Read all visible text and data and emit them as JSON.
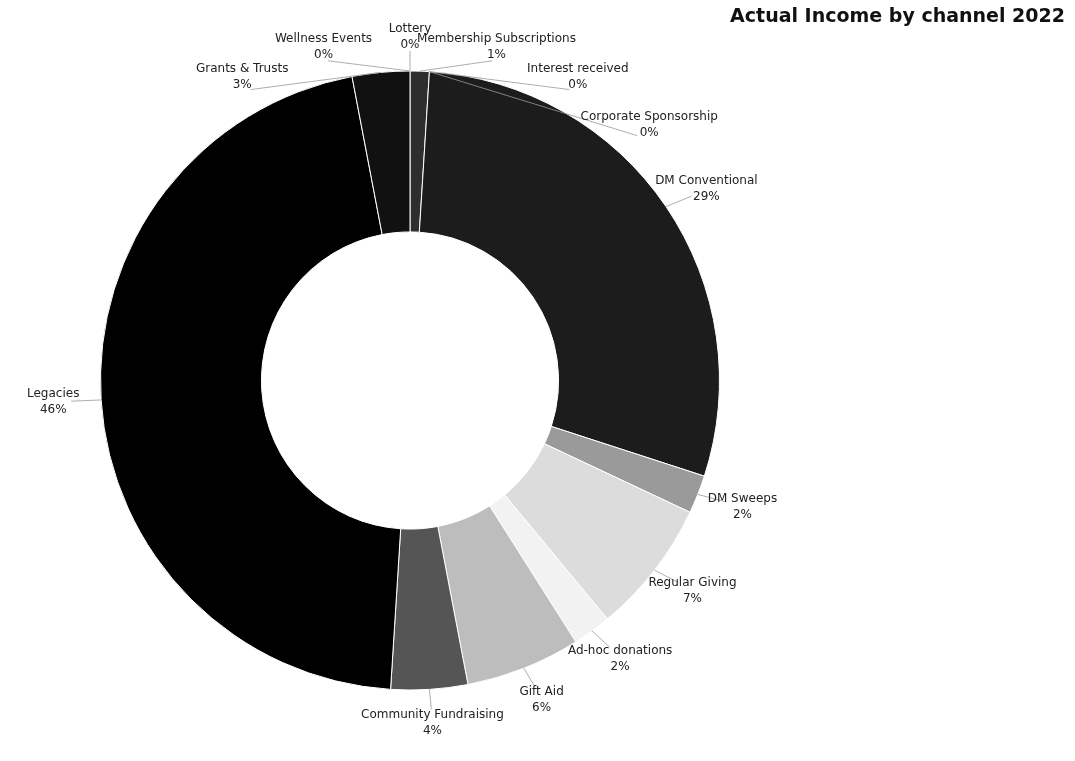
{
  "chart_data": {
    "type": "donut",
    "title": "Actual Income by channel 2022",
    "categories": [
      "Lottery",
      "Membership Subscriptions",
      "Interest received",
      "Corporate Sponsorship",
      "DM Conventional",
      "DM Sweeps",
      "Regular Giving",
      "Ad-hoc donations",
      "Gift Aid",
      "Community Fundraising",
      "Legacies",
      "Grants & Trusts",
      "Wellness Events"
    ],
    "values": [
      0,
      1,
      0,
      0,
      29,
      2,
      7,
      2,
      6,
      4,
      46,
      3,
      0
    ],
    "value_labels": [
      "0%",
      "1%",
      "0%",
      "0%",
      "29%",
      "2%",
      "7%",
      "2%",
      "6%",
      "4%",
      "46%",
      "3%",
      "0%"
    ],
    "colors": [
      "#3a3a3a",
      "#2e2e2e",
      "#333333",
      "#2a2a2a",
      "#1c1c1c",
      "#9a9a9a",
      "#dcdcdc",
      "#f2f2f2",
      "#bdbdbd",
      "#555555",
      "#000000",
      "#111111",
      "#444444"
    ],
    "legend": false
  }
}
